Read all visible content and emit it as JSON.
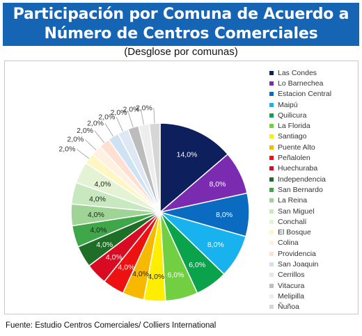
{
  "header": {
    "title_line1": "Participación por Comuna de Acuerdo a",
    "title_line2": "Número de Centros Comerciales",
    "subtitle": "(Desglose por comunas)"
  },
  "footer": {
    "source": "Fuente: Estudio Centros Comerciales/ Colliers International"
  },
  "chart_data": {
    "type": "pie",
    "title": "Participación por Comuna de Acuerdo a Número de Centros Comerciales",
    "subtitle": "(Desglose por comunas)",
    "legend_position": "right",
    "slices": [
      {
        "label": "Las Condes",
        "value": 14.0,
        "display": "14,0%",
        "color": "#0d1f5c"
      },
      {
        "label": "Lo Barnechea",
        "value": 8.0,
        "display": "8,0%",
        "color": "#7b2bb0"
      },
      {
        "label": "Estacion Central",
        "value": 8.0,
        "display": "8,0%",
        "color": "#0a6bc0"
      },
      {
        "label": "Maipú",
        "value": 8.0,
        "display": "8,0%",
        "color": "#18b2ee"
      },
      {
        "label": "Quilicura",
        "value": 6.0,
        "display": "6,0%",
        "color": "#0aa24b"
      },
      {
        "label": "La Florida",
        "value": 6.0,
        "display": "6,0%",
        "color": "#72cf42"
      },
      {
        "label": "Santiago",
        "value": 4.0,
        "display": "4,0%",
        "color": "#ffee00"
      },
      {
        "label": "Puente Alto",
        "value": 4.0,
        "display": "4,0%",
        "color": "#f7b800"
      },
      {
        "label": "Peñalolen",
        "value": 4.0,
        "display": "4,0%",
        "color": "#ee1111"
      },
      {
        "label": "Huechuraba",
        "value": 4.0,
        "display": "4,0%",
        "color": "#d80b22"
      },
      {
        "label": "Independencia",
        "value": 4.0,
        "display": "4,0%",
        "color": "#1e6e27"
      },
      {
        "label": "San Bernardo",
        "value": 4.0,
        "display": "4,0%",
        "color": "#40a64a"
      },
      {
        "label": "La Reina",
        "value": 4.0,
        "display": "4,0%",
        "color": "#9fd496"
      },
      {
        "label": "San Miguel",
        "value": 4.0,
        "display": "4,0%",
        "color": "#c8e8c0"
      },
      {
        "label": "Conchalí",
        "value": 4.0,
        "display": "4,0%",
        "color": "#e5f3d5"
      },
      {
        "label": "El Bosque",
        "value": 2.0,
        "display": "2,0%",
        "color": "#fff6c2"
      },
      {
        "label": "Colina",
        "value": 2.0,
        "display": "2,0%",
        "color": "#fff1e0"
      },
      {
        "label": "Providencia",
        "value": 2.0,
        "display": "2,0%",
        "color": "#fde0d2"
      },
      {
        "label": "San Joaquin",
        "value": 2.0,
        "display": "2,0%",
        "color": "#cfe2f3"
      },
      {
        "label": "Cerrillos",
        "value": 2.0,
        "display": "2,0%",
        "color": "#dde8f4"
      },
      {
        "label": "Vitacura",
        "value": 2.0,
        "display": "2,0%",
        "color": "#bcbcbc"
      },
      {
        "label": "Melipilla",
        "value": 2.0,
        "display": "2,0%",
        "color": "#ededed"
      },
      {
        "label": "Ñuñoa",
        "value": 2.0,
        "display": "2,0%",
        "color": "#d6d6d6"
      }
    ]
  }
}
